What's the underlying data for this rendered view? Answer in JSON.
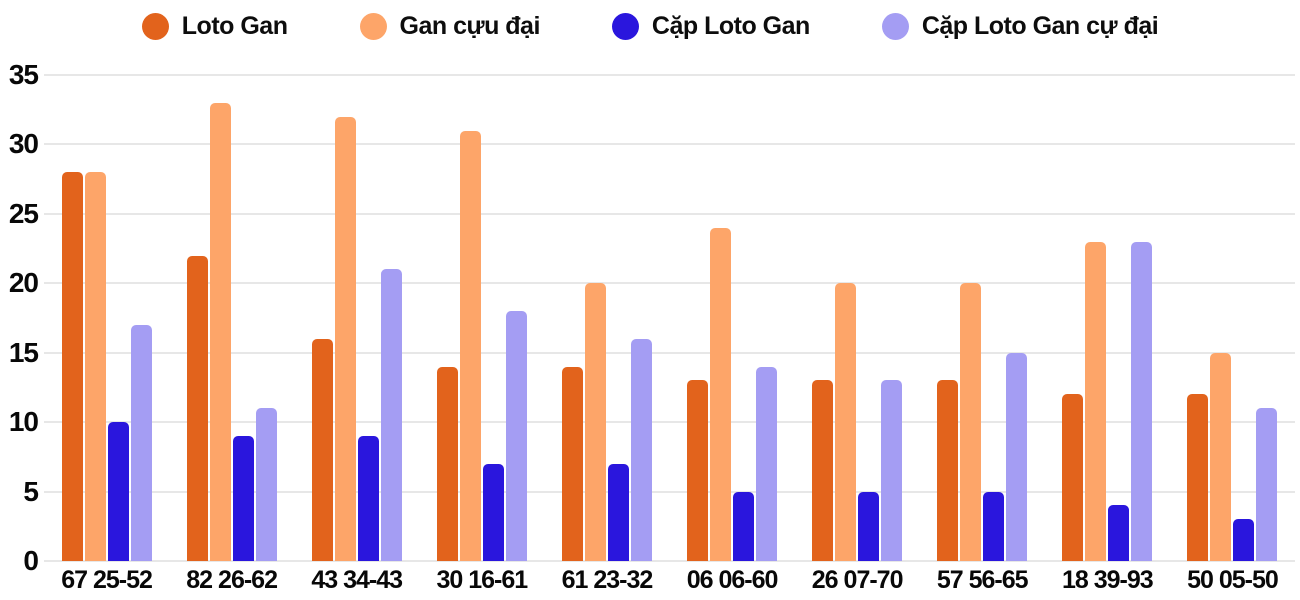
{
  "colors": {
    "loto_gan": "#e2631c",
    "gan_cuu_dai": "#fda569",
    "cap_loto_gan": "#2a16dd",
    "cap_loto_gan_cu_dai": "#a49df3",
    "gridline": "#e7e7e7",
    "text": "#080808"
  },
  "legend": {
    "items": [
      {
        "label": "Loto Gan",
        "color": "#e2631c"
      },
      {
        "label": "Gan cựu đại",
        "color": "#fda569"
      },
      {
        "label": "Cặp Loto Gan",
        "color": "#2a16dd"
      },
      {
        "label": "Cặp Loto Gan cự đại",
        "color": "#a49df3"
      }
    ]
  },
  "chart_data": {
    "type": "bar",
    "title": "",
    "xlabel": "",
    "ylabel": "",
    "categories": [
      "67 25-52",
      "82 26-62",
      "43 34-43",
      "30 16-61",
      "61 23-32",
      "06 06-60",
      "26 07-70",
      "57 56-65",
      "18 39-93",
      "50 05-50"
    ],
    "series": [
      {
        "name": "Loto Gan",
        "color": "#e2631c",
        "values": [
          28,
          22,
          16,
          14,
          14,
          13,
          13,
          13,
          12,
          12
        ]
      },
      {
        "name": "Gan cựu đại",
        "color": "#fda569",
        "values": [
          28,
          33,
          32,
          31,
          20,
          24,
          20,
          20,
          23,
          15
        ]
      },
      {
        "name": "Cặp Loto Gan",
        "color": "#2a16dd",
        "values": [
          10,
          9,
          9,
          7,
          7,
          5,
          5,
          5,
          4,
          3
        ]
      },
      {
        "name": "Cặp Loto Gan cự đại",
        "color": "#a49df3",
        "values": [
          17,
          11,
          21,
          18,
          16,
          14,
          13,
          15,
          23,
          11
        ]
      }
    ],
    "ylim": [
      0,
      35
    ],
    "yticks": [
      0,
      5,
      10,
      15,
      20,
      25,
      30,
      35
    ],
    "grid": true,
    "legend_position": "top"
  }
}
